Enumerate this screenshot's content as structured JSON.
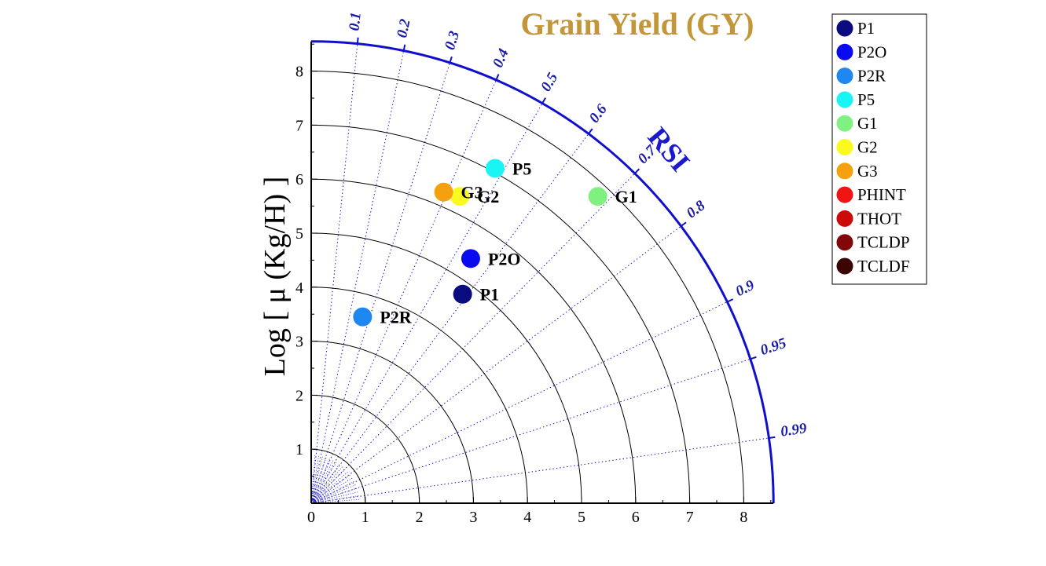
{
  "chart_data": {
    "type": "scatter",
    "subtype": "taylor-diagram",
    "title": "Grain Yield (GY)",
    "ylabel": "Log [ μ (Kg/H) ]",
    "angular_axis_label": "RSI",
    "radial_ticks": [
      "0",
      "1",
      "2",
      "3",
      "4",
      "5",
      "6",
      "7",
      "8"
    ],
    "radial_range": [
      0,
      8.55
    ],
    "grid": true,
    "rsi_ticks": [
      {
        "label": "0.1",
        "value": 0.1
      },
      {
        "label": "0.2",
        "value": 0.2
      },
      {
        "label": "0.3",
        "value": 0.3
      },
      {
        "label": "0.4",
        "value": 0.4
      },
      {
        "label": "0.5",
        "value": 0.5
      },
      {
        "label": "0.6",
        "value": 0.6
      },
      {
        "label": "0.7",
        "value": 0.7
      },
      {
        "label": "0.8",
        "value": 0.8
      },
      {
        "label": "0.9",
        "value": 0.9
      },
      {
        "label": "0.95",
        "value": 0.95
      },
      {
        "label": "0.99",
        "value": 0.99
      }
    ],
    "points": [
      {
        "name": "P1",
        "label": "P1",
        "x": 2.8,
        "y": 3.87,
        "color": "#0b0b80"
      },
      {
        "name": "P2O",
        "label": "P2O",
        "x": 2.95,
        "y": 4.53,
        "color": "#0a0aee"
      },
      {
        "name": "P2R",
        "label": "P2R",
        "x": 0.95,
        "y": 3.45,
        "color": "#1e88f0"
      },
      {
        "name": "P5",
        "label": "P5",
        "x": 3.4,
        "y": 6.2,
        "color": "#19f5f5"
      },
      {
        "name": "G1",
        "label": "G1",
        "x": 5.3,
        "y": 5.68,
        "color": "#80f080"
      },
      {
        "name": "G2",
        "label": "G2",
        "x": 2.75,
        "y": 5.68,
        "color": "#fafa1e"
      },
      {
        "name": "G3",
        "label": "G3",
        "x": 2.45,
        "y": 5.76,
        "color": "#f5a00e"
      }
    ],
    "legend": {
      "placement": "top-right",
      "entries": [
        {
          "name": "P1",
          "color": "#0b0b80"
        },
        {
          "name": "P2O",
          "color": "#0a0aee"
        },
        {
          "name": "P2R",
          "color": "#1e88f0"
        },
        {
          "name": "P5",
          "color": "#19f5f5"
        },
        {
          "name": "G1",
          "color": "#80f080"
        },
        {
          "name": "G2",
          "color": "#fafa1e"
        },
        {
          "name": "G3",
          "color": "#f5a00e"
        },
        {
          "name": "PHINT",
          "color": "#f01414"
        },
        {
          "name": "THOT",
          "color": "#cc0a0a"
        },
        {
          "name": "TCLDP",
          "color": "#800808"
        },
        {
          "name": "TCLDF",
          "color": "#3c0505"
        }
      ]
    }
  }
}
